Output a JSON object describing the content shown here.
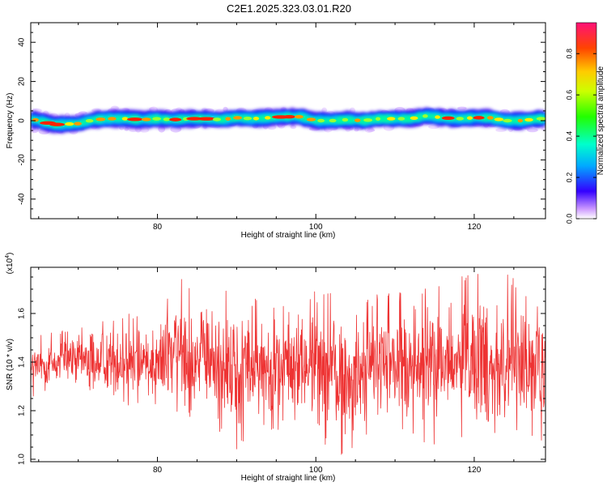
{
  "title": "C2E1.2025.323.03.01.R20",
  "chart_data": [
    {
      "type": "heatmap",
      "xlabel": "Height of straight line (km)",
      "ylabel": "Frequency (Hz)",
      "xlim": [
        64,
        129
      ],
      "ylim": [
        -50,
        50
      ],
      "x_ticks": [
        80,
        100,
        120
      ],
      "y_ticks": [
        40,
        20,
        0,
        -20,
        -40
      ],
      "y_tick_labels": [
        "40",
        "20",
        "0",
        "-20",
        "-40"
      ],
      "colorbar": {
        "label": "Normalized spectral amplitude",
        "range": [
          0,
          0.95
        ],
        "ticks": [
          0.0,
          0.2,
          0.4,
          0.6,
          0.8
        ],
        "tick_labels": [
          "0.0",
          "0.2",
          "0.4",
          "0.6",
          "0.8"
        ]
      },
      "band": {
        "center_hz": 0,
        "half_width_hz": 4,
        "note_centers": [
          [
            64.5,
            0.5
          ],
          [
            67,
            -2
          ],
          [
            70,
            -1.5
          ],
          [
            72,
            0.5
          ],
          [
            74,
            1
          ],
          [
            76,
            1
          ],
          [
            78,
            0.5
          ],
          [
            80,
            1
          ],
          [
            82,
            0.5
          ],
          [
            84,
            1
          ],
          [
            86,
            1
          ],
          [
            88,
            0.5
          ],
          [
            90,
            1.5
          ],
          [
            92,
            1
          ],
          [
            94,
            1.5
          ],
          [
            96,
            2
          ],
          [
            98,
            2
          ],
          [
            100,
            0
          ],
          [
            102,
            0
          ],
          [
            104,
            0.5
          ],
          [
            106,
            0
          ],
          [
            108,
            1
          ],
          [
            110,
            1
          ],
          [
            112,
            1
          ],
          [
            114,
            2.5
          ],
          [
            116,
            1.5
          ],
          [
            118,
            1
          ],
          [
            120,
            1.5
          ],
          [
            122,
            1.5
          ],
          [
            124,
            0
          ],
          [
            126,
            0
          ],
          [
            128,
            1
          ]
        ]
      }
    },
    {
      "type": "line",
      "xlabel": "Height of straight line (km)",
      "ylabel": "SNR (10 * v/v)",
      "multiplier_label": "(x10",
      "multiplier_exp": "4",
      "multiplier_close": ")",
      "xlim": [
        64,
        129
      ],
      "ylim": [
        0.99,
        1.79
      ],
      "x_ticks": [
        80,
        100,
        120
      ],
      "y_ticks": [
        1.0,
        1.2,
        1.4,
        1.6
      ],
      "y_tick_labels": [
        "1.0",
        "1.2",
        "1.4",
        "1.6"
      ],
      "color": "#ee3333",
      "series": [
        {
          "x_start": 64,
          "x_end": 129,
          "envelope": [
            [
              64,
              1.25,
              1.5
            ],
            [
              70,
              1.27,
              1.55
            ],
            [
              75,
              1.22,
              1.6
            ],
            [
              80,
              1.2,
              1.62
            ],
            [
              83,
              1.12,
              1.76
            ],
            [
              86,
              1.15,
              1.68
            ],
            [
              90,
              1.02,
              1.72
            ],
            [
              92,
              1.13,
              1.68
            ],
            [
              95,
              1.12,
              1.62
            ],
            [
              100,
              1.08,
              1.72
            ],
            [
              104,
              1.0,
              1.66
            ],
            [
              108,
              1.1,
              1.68
            ],
            [
              112,
              1.08,
              1.72
            ],
            [
              116,
              1.05,
              1.74
            ],
            [
              120,
              1.1,
              1.76
            ],
            [
              123,
              0.99,
              1.78
            ],
            [
              126,
              1.12,
              1.76
            ],
            [
              129,
              1.05,
              1.6
            ]
          ]
        }
      ]
    }
  ]
}
